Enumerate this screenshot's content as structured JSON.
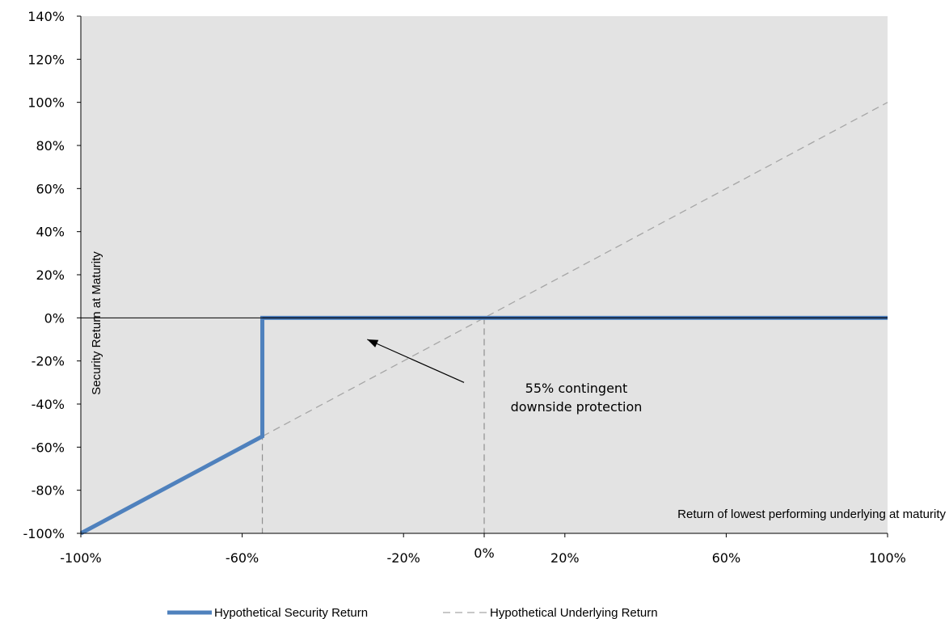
{
  "chart_data": {
    "type": "line",
    "xlabel": "Return of lowest performing underlying at maturity",
    "ylabel": "Security Return at Maturity",
    "xlim": [
      -100,
      100
    ],
    "ylim": [
      -100,
      140
    ],
    "x_ticks": [
      -100,
      -60,
      -20,
      0,
      20,
      60,
      100
    ],
    "x_tick_labels": [
      "-100%",
      "-60%",
      "-20%",
      "0%",
      "20%",
      "60%",
      "100%"
    ],
    "y_ticks": [
      140,
      120,
      100,
      80,
      60,
      40,
      20,
      0,
      -20,
      -40,
      -60,
      -80,
      -100
    ],
    "y_tick_labels": [
      "140%",
      "120%",
      "100%",
      "80%",
      "60%",
      "40%",
      "20%",
      "0%",
      "-20%",
      "-40%",
      "-60%",
      "-80%",
      "-100%"
    ],
    "grid": false,
    "legend_position": "bottom",
    "series": [
      {
        "name": "Hypothetical Security Return",
        "style": "solid",
        "color": "#4f81bd",
        "points": [
          [
            -100,
            -100
          ],
          [
            -55,
            -55
          ],
          [
            -55,
            0
          ],
          [
            100,
            0
          ]
        ]
      },
      {
        "name": "Hypothetical Underlying Return",
        "style": "dashed",
        "color": "#a6a6a6",
        "points": [
          [
            -100,
            -100
          ],
          [
            100,
            100
          ]
        ]
      }
    ],
    "reference_lines": [
      {
        "axis": "x",
        "value": -55,
        "style": "dashed"
      },
      {
        "axis": "x",
        "value": 0,
        "style": "dashed"
      },
      {
        "axis": "y",
        "value": 0,
        "style": "solid"
      }
    ],
    "annotations": [
      {
        "text_lines": [
          "55% contingent",
          "downside protection"
        ],
        "arrow_from": [
          -5,
          -30
        ],
        "arrow_to": [
          -29,
          -10
        ]
      }
    ]
  },
  "colors": {
    "plot_background": "#e3e3e3",
    "security_line": "#4f81bd",
    "security_line_dark": "#1f3d7a",
    "underlying_line": "#a6a6a6",
    "reference_dash": "#909090"
  }
}
